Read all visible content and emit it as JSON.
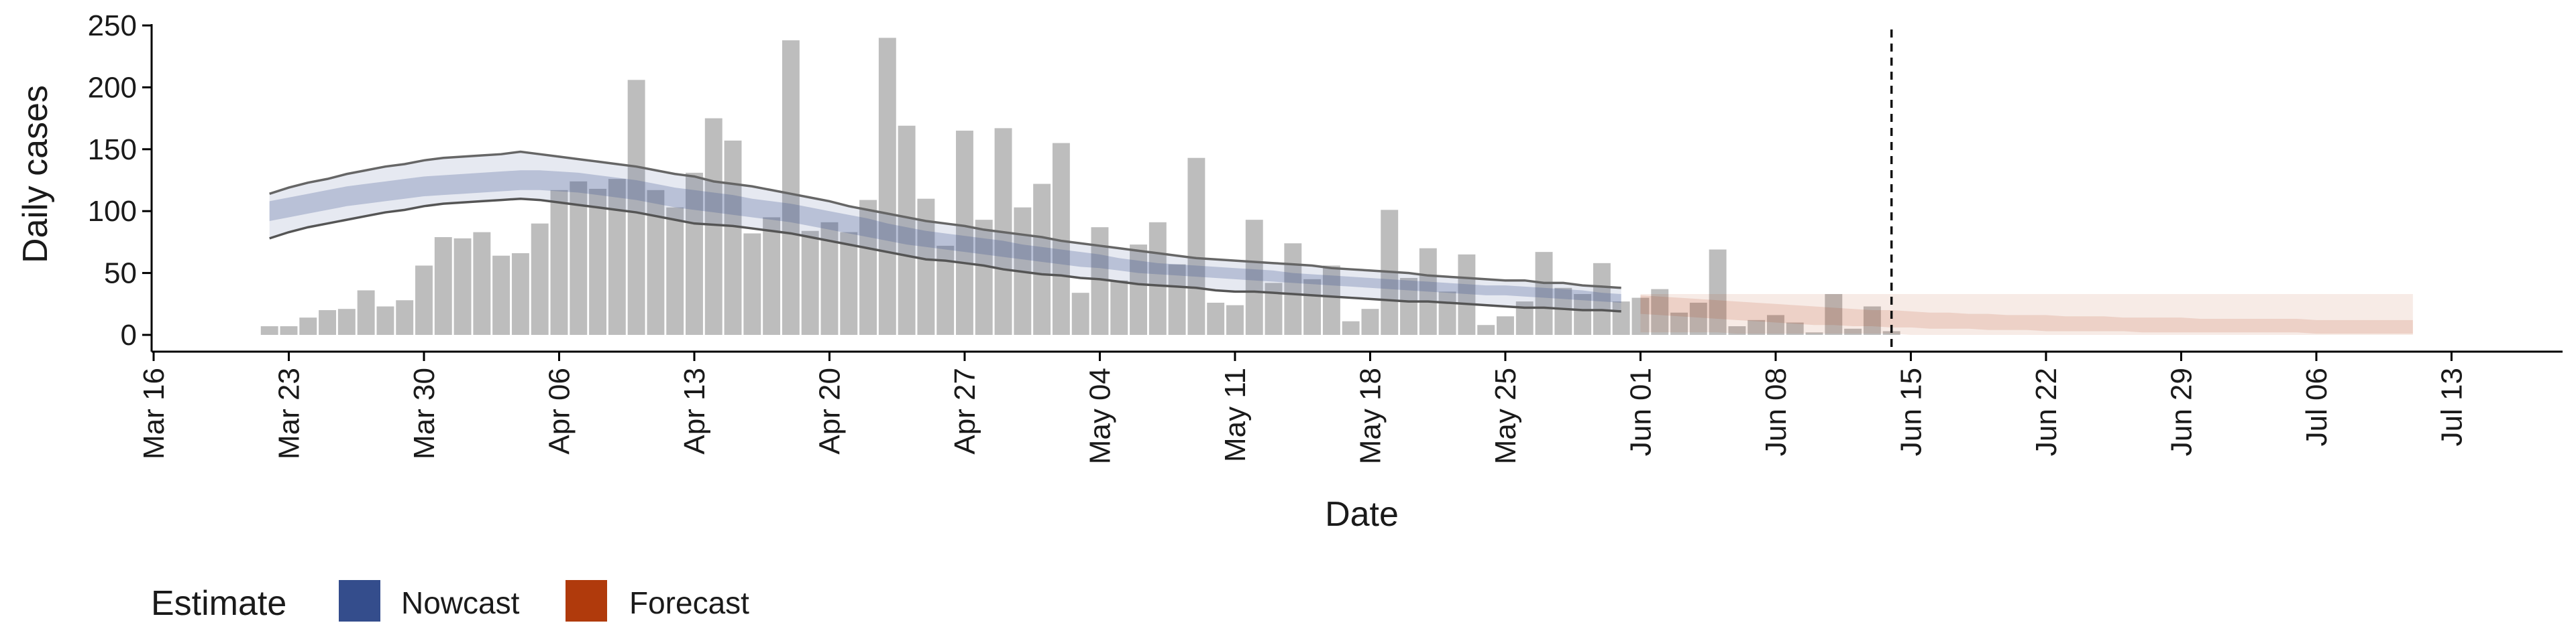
{
  "chart_data": {
    "type": "bar",
    "xlabel": "Date",
    "ylabel": "Daily cases",
    "ylim": [
      0,
      250
    ],
    "yticks": [
      0,
      50,
      100,
      150,
      200,
      250
    ],
    "xlim": [
      "2020-03-16",
      "2020-07-15"
    ],
    "x_ticks": [
      {
        "date": "2020-03-16",
        "label": "Mar 16"
      },
      {
        "date": "2020-03-23",
        "label": "Mar 23"
      },
      {
        "date": "2020-03-30",
        "label": "Mar 30"
      },
      {
        "date": "2020-04-06",
        "label": "Apr 06"
      },
      {
        "date": "2020-04-13",
        "label": "Apr 13"
      },
      {
        "date": "2020-04-20",
        "label": "Apr 20"
      },
      {
        "date": "2020-04-27",
        "label": "Apr 27"
      },
      {
        "date": "2020-05-04",
        "label": "May 04"
      },
      {
        "date": "2020-05-11",
        "label": "May 11"
      },
      {
        "date": "2020-05-18",
        "label": "May 18"
      },
      {
        "date": "2020-05-25",
        "label": "May 25"
      },
      {
        "date": "2020-06-01",
        "label": "Jun 01"
      },
      {
        "date": "2020-06-08",
        "label": "Jun 08"
      },
      {
        "date": "2020-06-15",
        "label": "Jun 15"
      },
      {
        "date": "2020-06-22",
        "label": "Jun 22"
      },
      {
        "date": "2020-06-29",
        "label": "Jun 29"
      },
      {
        "date": "2020-07-06",
        "label": "Jul 06"
      },
      {
        "date": "2020-07-13",
        "label": "Jul 13"
      }
    ],
    "grid": false,
    "legend": {
      "title": "Estimate",
      "placement": "bottom-left",
      "entries": [
        {
          "label": "Nowcast",
          "color": "#344D8C"
        },
        {
          "label": "Forecast",
          "color": "#B03A0C"
        }
      ]
    },
    "vline": {
      "date": "2020-06-14",
      "style": "dashed"
    },
    "observed_cases": {
      "start": "2020-03-22",
      "color": "#bdbdbd",
      "values": [
        7,
        7,
        14,
        20,
        21,
        36,
        23,
        28,
        56,
        79,
        78,
        83,
        64,
        66,
        90,
        117,
        124,
        118,
        126,
        206,
        117,
        103,
        131,
        175,
        157,
        82,
        95,
        238,
        84,
        91,
        83,
        109,
        240,
        169,
        110,
        72,
        165,
        93,
        167,
        103,
        122,
        155,
        34,
        87,
        44,
        73,
        91,
        57,
        143,
        26,
        24,
        93,
        42,
        74,
        45,
        56,
        11,
        21,
        101,
        46,
        70,
        35,
        65,
        8,
        15,
        27,
        67,
        38,
        33,
        58,
        27,
        30,
        37,
        18,
        26,
        69,
        7,
        12,
        16,
        10,
        2,
        33,
        5,
        23,
        3
      ]
    },
    "nowcast": {
      "start": "2020-03-22",
      "color": "#344D8C",
      "median": [
        100,
        103,
        106,
        109,
        112,
        114,
        116,
        118,
        120,
        121,
        122,
        123,
        124,
        125,
        125,
        124,
        123,
        121,
        119,
        117,
        114,
        111,
        109,
        107,
        105,
        102,
        100,
        98,
        95,
        92,
        89,
        86,
        83,
        80,
        77,
        75,
        73,
        71,
        69,
        67,
        65,
        63,
        61,
        59,
        57,
        55,
        53,
        52,
        51,
        50,
        49,
        48,
        47,
        46,
        45,
        44,
        43,
        42,
        41,
        40,
        39,
        38,
        37,
        36,
        36,
        35,
        34,
        33,
        32,
        30,
        29
      ],
      "inner_lower": [
        92,
        95,
        98,
        101,
        104,
        106,
        108,
        110,
        112,
        113,
        114,
        115,
        116,
        117,
        117,
        116,
        115,
        113,
        111,
        109,
        106,
        103,
        101,
        99,
        97,
        95,
        93,
        91,
        88,
        85,
        82,
        79,
        76,
        73,
        71,
        69,
        67,
        65,
        63,
        61,
        59,
        57,
        55,
        54,
        52,
        50,
        49,
        48,
        47,
        46,
        45,
        44,
        43,
        42,
        41,
        40,
        39,
        38,
        37,
        36,
        35,
        34,
        33,
        32,
        32,
        31,
        30,
        29,
        28,
        27,
        26
      ],
      "inner_upper": [
        108,
        111,
        114,
        117,
        120,
        122,
        124,
        126,
        128,
        129,
        130,
        131,
        132,
        133,
        133,
        132,
        131,
        129,
        127,
        125,
        122,
        119,
        117,
        115,
        113,
        110,
        108,
        106,
        103,
        100,
        97,
        94,
        90,
        87,
        84,
        82,
        80,
        78,
        76,
        73,
        71,
        69,
        67,
        65,
        62,
        60,
        58,
        57,
        56,
        55,
        54,
        53,
        52,
        50,
        49,
        48,
        47,
        46,
        45,
        44,
        43,
        42,
        41,
        40,
        40,
        39,
        38,
        37,
        36,
        34,
        33
      ],
      "outer_lower": [
        78,
        83,
        87,
        90,
        93,
        96,
        99,
        101,
        104,
        106,
        107,
        108,
        109,
        110,
        109,
        107,
        105,
        103,
        101,
        99,
        96,
        93,
        90,
        89,
        88,
        86,
        84,
        82,
        79,
        76,
        73,
        70,
        67,
        64,
        61,
        60,
        58,
        56,
        53,
        51,
        49,
        48,
        46,
        45,
        43,
        41,
        40,
        39,
        38,
        36,
        35,
        35,
        34,
        33,
        32,
        31,
        30,
        29,
        28,
        27,
        27,
        26,
        25,
        24,
        23,
        22,
        22,
        21,
        20,
        20,
        19
      ],
      "outer_upper": [
        114,
        119,
        123,
        126,
        130,
        133,
        136,
        138,
        141,
        143,
        144,
        145,
        146,
        148,
        146,
        144,
        142,
        140,
        138,
        136,
        133,
        130,
        128,
        124,
        122,
        120,
        117,
        114,
        111,
        108,
        104,
        101,
        98,
        95,
        92,
        90,
        88,
        85,
        83,
        81,
        79,
        76,
        74,
        72,
        70,
        68,
        66,
        64,
        62,
        61,
        60,
        59,
        58,
        57,
        56,
        54,
        53,
        52,
        51,
        50,
        48,
        47,
        46,
        45,
        44,
        44,
        42,
        42,
        40,
        39,
        38
      ]
    },
    "forecast": {
      "start": "2020-06-01",
      "end": "2020-07-11",
      "color": "#B03A0C",
      "median": [
        25,
        24,
        23,
        22,
        21,
        20,
        19,
        18,
        17,
        16,
        15,
        14,
        14,
        13,
        12,
        12,
        11,
        11,
        10,
        10,
        9,
        9,
        9,
        8,
        8,
        8,
        7,
        7,
        7,
        7,
        6,
        6,
        6,
        6,
        6,
        5,
        5,
        5,
        5,
        5,
        5
      ],
      "inner_lower": [
        17,
        16,
        15,
        14,
        13,
        12,
        11,
        10,
        9,
        8,
        8,
        7,
        7,
        6,
        6,
        5,
        5,
        5,
        4,
        4,
        4,
        3,
        3,
        3,
        3,
        3,
        2,
        2,
        2,
        2,
        2,
        2,
        2,
        2,
        2,
        1,
        1,
        1,
        1,
        1,
        1
      ],
      "inner_upper": [
        32,
        31,
        30,
        29,
        28,
        27,
        26,
        25,
        24,
        23,
        22,
        21,
        20,
        20,
        19,
        18,
        18,
        17,
        17,
        16,
        16,
        16,
        15,
        15,
        15,
        14,
        14,
        14,
        14,
        13,
        13,
        13,
        13,
        13,
        13,
        12,
        12,
        12,
        12,
        12,
        12
      ],
      "outer_lower": [
        2,
        2,
        2,
        2,
        2,
        1,
        1,
        1,
        1,
        1,
        1,
        1,
        1,
        1,
        0,
        0,
        0,
        0,
        0,
        0,
        0,
        0,
        0,
        0,
        0,
        0,
        0,
        0,
        0,
        0,
        0,
        0,
        0,
        0,
        0,
        0,
        0,
        0,
        0,
        0,
        0
      ],
      "outer_upper": [
        33,
        33,
        33,
        33,
        33,
        33,
        33,
        33,
        33,
        33,
        33,
        33,
        33,
        33,
        33,
        33,
        33,
        33,
        33,
        33,
        33,
        33,
        33,
        33,
        33,
        33,
        33,
        33,
        33,
        33,
        33,
        33,
        33,
        33,
        33,
        33,
        33,
        33,
        33,
        33,
        33
      ]
    }
  }
}
